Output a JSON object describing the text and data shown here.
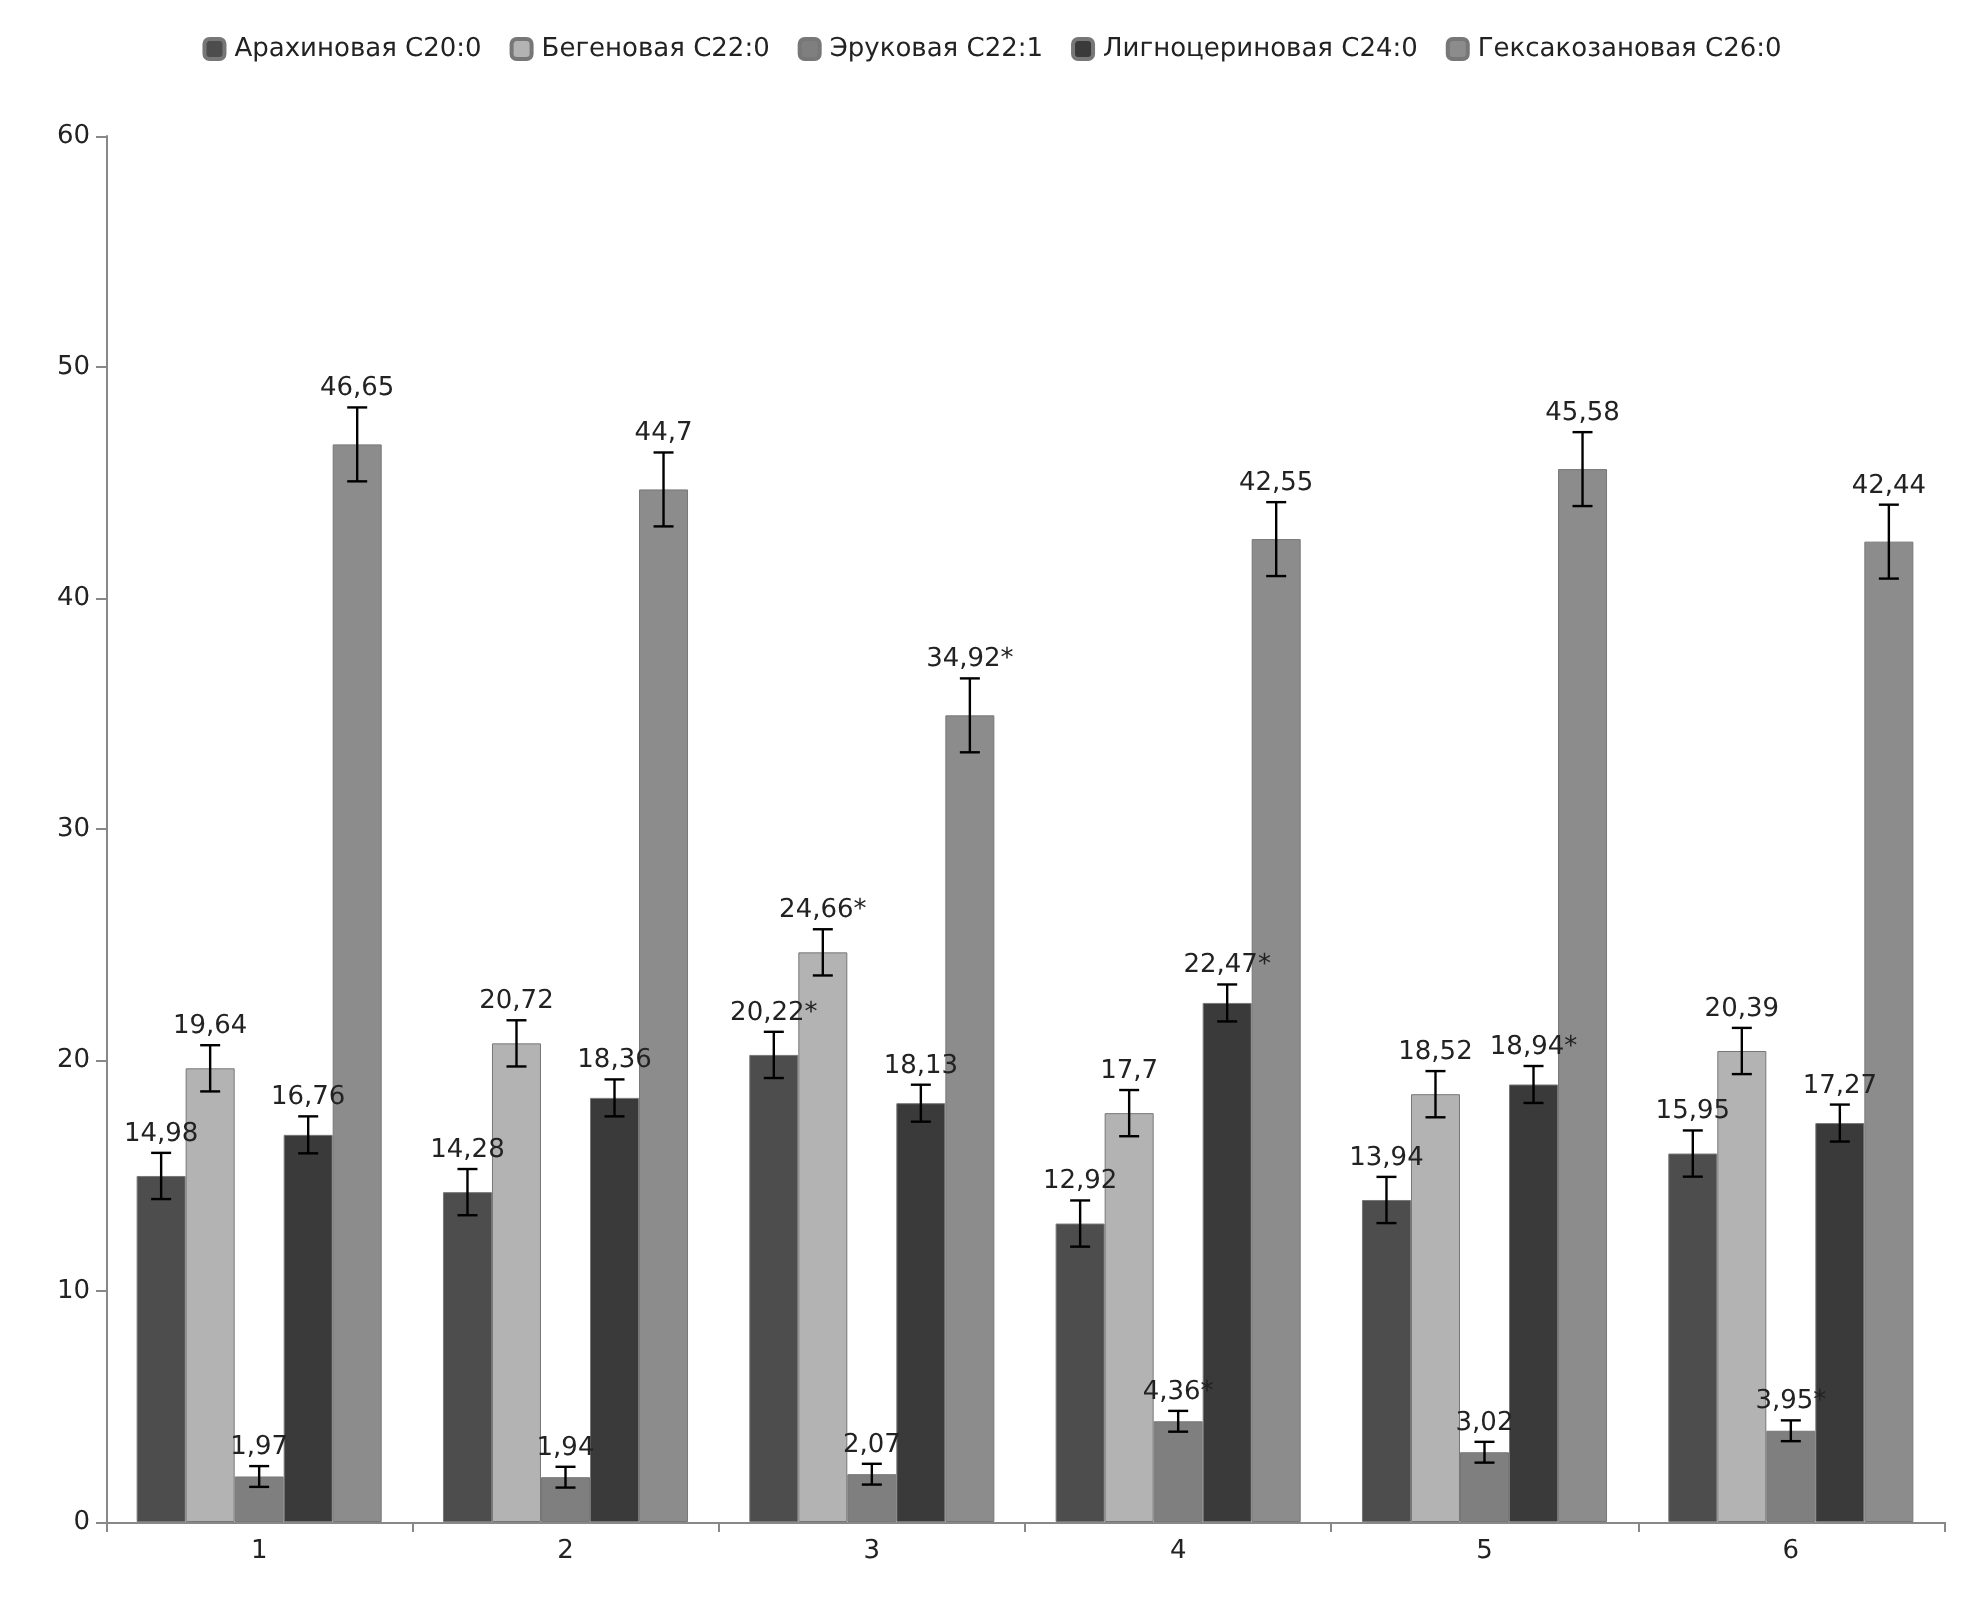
{
  "chart_data": {
    "type": "bar",
    "categories": [
      "1",
      "2",
      "3",
      "4",
      "5",
      "6"
    ],
    "series": [
      {
        "name": "Арахиновая C20:0",
        "color": "#4d4d4d",
        "values": [
          14.98,
          14.28,
          20.22,
          12.92,
          13.94,
          15.95
        ],
        "errors": [
          1.0,
          1.0,
          1.0,
          1.0,
          1.0,
          1.0
        ],
        "value_labels": [
          "14,98",
          "14,28",
          "20,22*",
          "12,92",
          "13,94",
          "15,95"
        ]
      },
      {
        "name": "Бегеновая C22:0",
        "color": "#b3b3b3",
        "values": [
          19.64,
          20.72,
          24.66,
          17.7,
          18.52,
          20.39
        ],
        "errors": [
          1.0,
          1.0,
          1.0,
          1.0,
          1.0,
          1.0
        ],
        "value_labels": [
          "19,64",
          "20,72",
          "24,66*",
          "17,7",
          "18,52",
          "20,39"
        ]
      },
      {
        "name": "Эруковая C22:1",
        "color": "#7f7f7f",
        "values": [
          1.97,
          1.94,
          2.07,
          4.36,
          3.02,
          3.95
        ],
        "errors": [
          0.45,
          0.45,
          0.45,
          0.45,
          0.45,
          0.45
        ],
        "value_labels": [
          "1,97",
          "1,94",
          "2,07",
          "4,36*",
          "3,02",
          "3,95*"
        ]
      },
      {
        "name": "Лигноцериновая C24:0",
        "color": "#3a3a3a",
        "values": [
          16.76,
          18.36,
          18.13,
          22.47,
          18.94,
          17.27
        ],
        "errors": [
          0.8,
          0.8,
          0.8,
          0.8,
          0.8,
          0.8
        ],
        "value_labels": [
          "16,76",
          "18,36",
          "18,13",
          "22,47*",
          "18,94*",
          "17,27"
        ]
      },
      {
        "name": "Гексакозановая C26:0",
        "color": "#8c8c8c",
        "values": [
          46.65,
          44.7,
          34.92,
          42.55,
          45.58,
          42.44
        ],
        "errors": [
          1.6,
          1.6,
          1.6,
          1.6,
          1.6,
          1.6
        ],
        "value_labels": [
          "46,65",
          "44,7",
          "34,92*",
          "42,55",
          "45,58",
          "42,44"
        ]
      }
    ],
    "ylim": [
      0,
      60
    ],
    "yticks": [
      0,
      10,
      20,
      30,
      40,
      50,
      60
    ],
    "grid": false,
    "legend": "top"
  }
}
